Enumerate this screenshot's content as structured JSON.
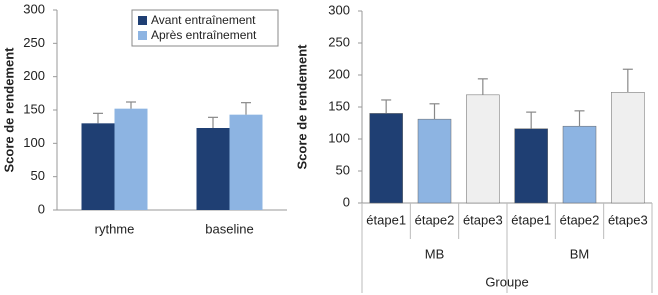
{
  "chart_data": [
    {
      "type": "bar",
      "ylabel": "Score de rendement",
      "categories": [
        "rythme",
        "baseline"
      ],
      "series": [
        {
          "name": "Avant entraînement",
          "color": "#1f3f73",
          "values": [
            130,
            123
          ],
          "errors": [
            15,
            16
          ]
        },
        {
          "name": "Après entraînement",
          "color": "#8db4e2",
          "values": [
            152,
            143
          ],
          "errors": [
            10,
            18
          ]
        }
      ],
      "ylim": [
        0,
        300
      ],
      "yticks": [
        0,
        50,
        100,
        150,
        200,
        250,
        300
      ],
      "legend": "upper right"
    },
    {
      "type": "bar",
      "ylabel": "Score de rendement",
      "xlabel": "Groupe",
      "categories": [
        "étape1",
        "étape2",
        "étape3",
        "étape1",
        "étape2",
        "étape3"
      ],
      "groups": [
        "MB",
        "BM"
      ],
      "values": [
        140,
        131,
        169,
        116,
        120,
        173
      ],
      "errors": [
        21,
        24,
        25,
        26,
        24,
        36
      ],
      "colors": [
        "#1f3f73",
        "#8db4e2",
        "#efefef",
        "#1f3f73",
        "#8db4e2",
        "#efefef"
      ],
      "ylim": [
        0,
        300
      ],
      "yticks": [
        0,
        50,
        100,
        150,
        200,
        250,
        300
      ]
    }
  ]
}
